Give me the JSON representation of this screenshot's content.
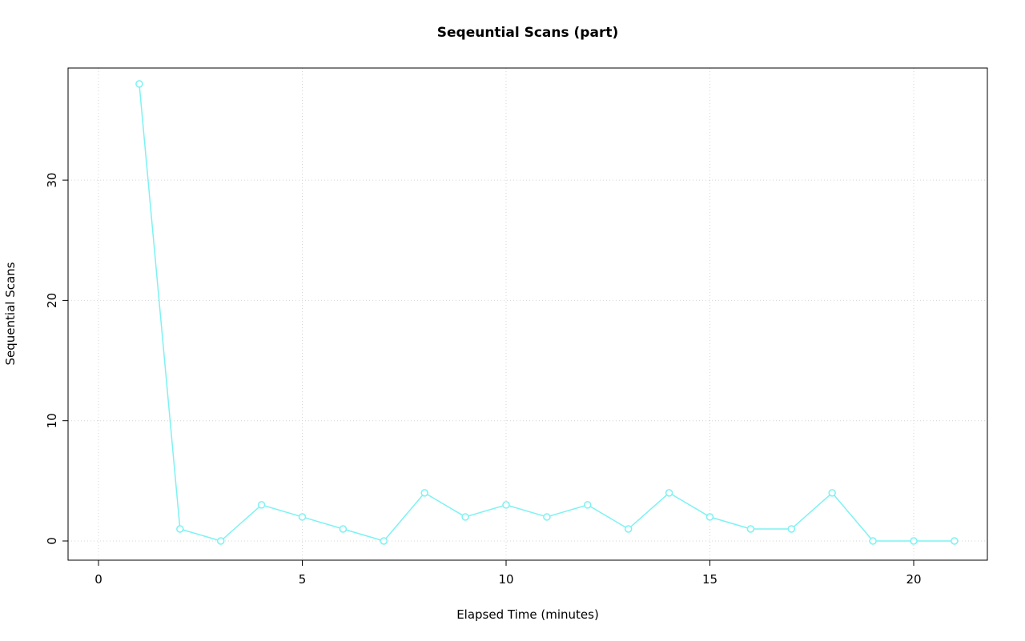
{
  "chart_data": {
    "type": "line",
    "title": "Seqeuntial Scans (part)",
    "xlabel": "Elapsed Time (minutes)",
    "ylabel": "Sequential Scans",
    "x": [
      1,
      2,
      3,
      4,
      5,
      6,
      7,
      8,
      9,
      10,
      11,
      12,
      13,
      14,
      15,
      16,
      17,
      18,
      19,
      20,
      21
    ],
    "y": [
      38,
      1,
      0,
      3,
      2,
      1,
      0,
      4,
      2,
      3,
      2,
      3,
      1,
      4,
      2,
      1,
      1,
      4,
      0,
      0,
      0
    ],
    "x_ticks": [
      0,
      5,
      10,
      15,
      20
    ],
    "y_ticks": [
      0,
      10,
      20,
      30
    ],
    "xlim": [
      -0.75,
      21.8
    ],
    "ylim": [
      -1.6,
      39.3
    ],
    "grid": true,
    "legend": "none",
    "marker": "open-circle",
    "series_color": "#7df2f2",
    "grid_color": "#d4d4d4",
    "box_color": "#000000",
    "background_color": "#ffffff"
  }
}
